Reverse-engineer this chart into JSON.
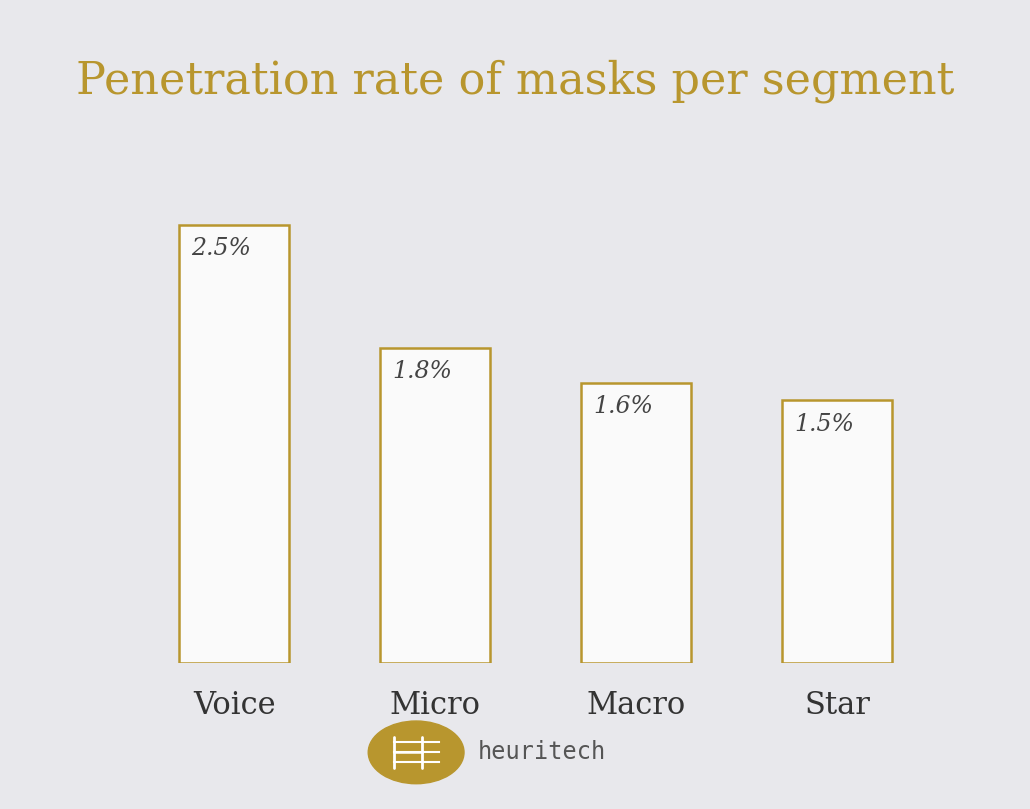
{
  "title": "Penetration rate of masks per segment",
  "title_color": "#b8962e",
  "title_fontsize": 32,
  "categories": [
    "Voice",
    "Micro",
    "Macro",
    "Star"
  ],
  "values": [
    2.5,
    1.8,
    1.6,
    1.5
  ],
  "labels": [
    "2.5%",
    "1.8%",
    "1.6%",
    "1.5%"
  ],
  "bar_color": "#fafafa",
  "bar_edge_color": "#b8962e",
  "bar_linewidth": 1.8,
  "background_color": "#e8e8ec",
  "label_color": "#444444",
  "label_fontsize": 17,
  "tick_label_fontsize": 22,
  "tick_label_color": "#333333",
  "bar_width": 0.55,
  "ylim": [
    0,
    3.0
  ],
  "logo_circle_color": "#b8962e",
  "brand_text": "heuritech",
  "brand_text_color": "#555555",
  "brand_fontsize": 17
}
